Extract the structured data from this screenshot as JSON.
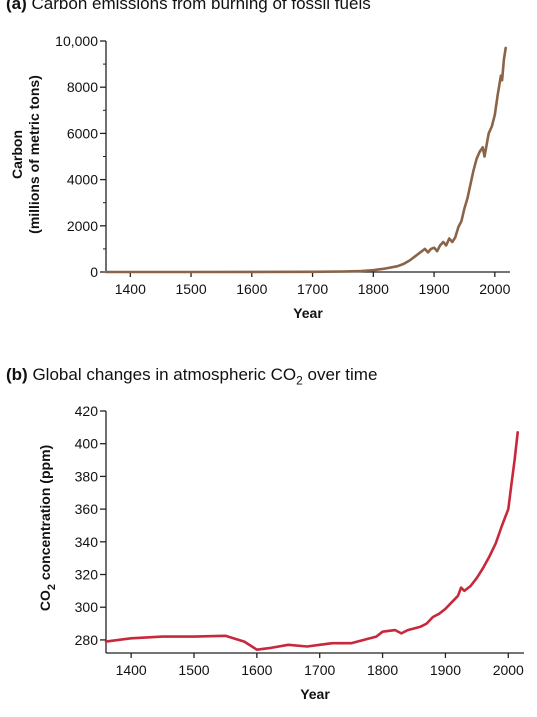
{
  "chart_data": [
    {
      "type": "line",
      "panel_label": "(a)",
      "title": "Carbon emissions from burning of fossil fuels",
      "xlabel": "Year",
      "ylabel_line1": "Carbon",
      "ylabel_line2": "(millions of metric tons)",
      "xlim": [
        1360,
        2025
      ],
      "ylim": [
        0,
        10000
      ],
      "xticks": [
        1400,
        1500,
        1600,
        1700,
        1800,
        1900,
        2000
      ],
      "yticks": [
        0,
        2000,
        4000,
        6000,
        8000,
        10000
      ],
      "ytick_labels": [
        "0",
        "2000",
        "4000",
        "6000",
        "8000",
        "10,000"
      ],
      "color": "#8b6448",
      "x": [
        1360,
        1500,
        1700,
        1750,
        1780,
        1800,
        1820,
        1840,
        1850,
        1860,
        1870,
        1880,
        1885,
        1890,
        1895,
        1900,
        1905,
        1910,
        1915,
        1920,
        1925,
        1930,
        1935,
        1940,
        1945,
        1950,
        1955,
        1960,
        1965,
        1970,
        1975,
        1980,
        1983,
        1990,
        1995,
        2000,
        2005,
        2010,
        2012,
        2015,
        2018
      ],
      "y": [
        0,
        0,
        10,
        20,
        40,
        80,
        150,
        250,
        350,
        500,
        700,
        900,
        1000,
        850,
        1000,
        1050,
        900,
        1150,
        1300,
        1150,
        1450,
        1300,
        1500,
        1950,
        2200,
        2750,
        3200,
        3800,
        4400,
        4900,
        5200,
        5400,
        5000,
        6000,
        6300,
        6800,
        7700,
        8500,
        8300,
        9200,
        9700
      ]
    },
    {
      "type": "line",
      "panel_label": "(b)",
      "title_pre": "Global changes in atmospheric CO",
      "title_sub": "2",
      "title_post": " over time",
      "xlabel": "Year",
      "ylabel_pre": "CO",
      "ylabel_sub": "2",
      "ylabel_post": " concentration (ppm)",
      "xlim": [
        1360,
        2025
      ],
      "ylim": [
        272,
        420
      ],
      "xticks": [
        1400,
        1500,
        1600,
        1700,
        1800,
        1900,
        2000
      ],
      "yticks": [
        280,
        300,
        320,
        340,
        360,
        380,
        400,
        420
      ],
      "color": "#c8283c",
      "x": [
        1360,
        1400,
        1450,
        1500,
        1550,
        1580,
        1600,
        1620,
        1650,
        1680,
        1700,
        1720,
        1750,
        1780,
        1790,
        1800,
        1820,
        1830,
        1840,
        1850,
        1860,
        1870,
        1880,
        1890,
        1900,
        1910,
        1920,
        1925,
        1930,
        1940,
        1950,
        1960,
        1970,
        1980,
        1990,
        2000,
        2005,
        2010,
        2015
      ],
      "y": [
        279,
        281,
        282,
        282,
        282.5,
        279,
        274,
        275,
        277,
        276,
        277,
        278,
        278,
        281,
        282,
        285,
        286,
        284,
        286,
        287,
        288,
        290,
        294,
        296,
        299,
        303,
        307,
        312,
        310,
        313,
        318,
        324,
        331,
        339,
        350,
        360,
        375,
        390,
        407
      ]
    }
  ]
}
